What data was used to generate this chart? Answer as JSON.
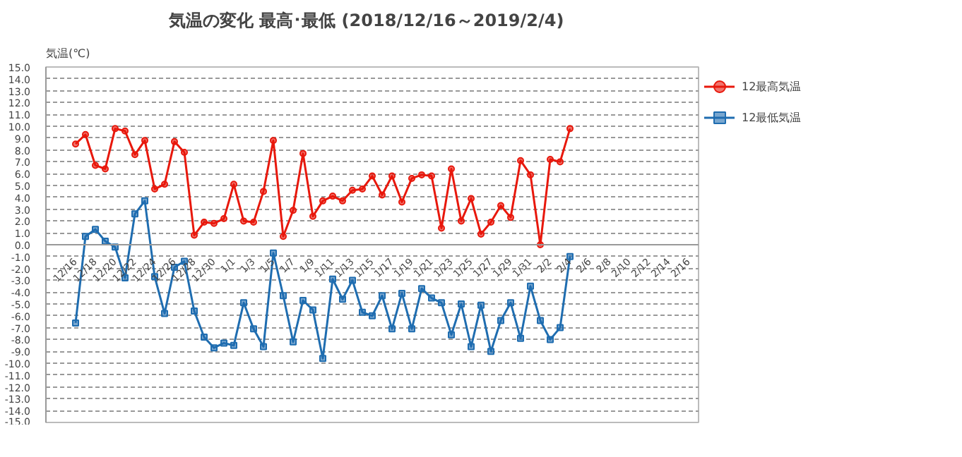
{
  "chart_data": {
    "type": "line",
    "title": "気温の変化  最高･最低  (2018/12/16～2019/2/4)",
    "ylabel": "気温(℃)",
    "x": [
      "2018-12-16",
      "2018-12-17",
      "2018-12-18",
      "2018-12-19",
      "2018-12-20",
      "2018-12-21",
      "2018-12-22",
      "2018-12-23",
      "2018-12-24",
      "2018-12-25",
      "2018-12-26",
      "2018-12-27",
      "2018-12-28",
      "2018-12-29",
      "2018-12-30",
      "2018-12-31",
      "2019-01-01",
      "2019-01-02",
      "2019-01-03",
      "2019-01-04",
      "2019-01-05",
      "2019-01-06",
      "2019-01-07",
      "2019-01-08",
      "2019-01-09",
      "2019-01-10",
      "2019-01-11",
      "2019-01-12",
      "2019-01-13",
      "2019-01-14",
      "2019-01-15",
      "2019-01-16",
      "2019-01-17",
      "2019-01-18",
      "2019-01-19",
      "2019-01-20",
      "2019-01-21",
      "2019-01-22",
      "2019-01-23",
      "2019-01-24",
      "2019-01-25",
      "2019-01-26",
      "2019-01-27",
      "2019-01-28",
      "2019-01-29",
      "2019-01-30",
      "2019-01-31",
      "2019-02-01",
      "2019-02-02",
      "2019-02-03",
      "2019-02-04"
    ],
    "series": [
      {
        "name": "12最高気温",
        "color": "#e8180c",
        "marker": "circle",
        "values": [
          8.5,
          9.3,
          6.7,
          6.4,
          9.8,
          9.6,
          7.6,
          8.8,
          4.7,
          5.1,
          8.7,
          7.8,
          0.8,
          1.9,
          1.8,
          2.2,
          5.1,
          2.0,
          1.9,
          4.5,
          8.8,
          0.7,
          2.9,
          7.7,
          2.4,
          3.7,
          4.1,
          3.7,
          4.6,
          4.7,
          5.8,
          4.2,
          5.8,
          3.6,
          5.6,
          5.9,
          5.8,
          1.4,
          6.4,
          2.0,
          3.9,
          0.9,
          1.9,
          3.3,
          2.3,
          7.1,
          5.9,
          0.0,
          7.2,
          7.0,
          9.8
        ]
      },
      {
        "name": "12最低気温",
        "color": "#1f6db0",
        "marker": "square",
        "values": [
          -6.6,
          0.7,
          1.3,
          0.3,
          -0.2,
          -2.8,
          2.6,
          3.7,
          -2.7,
          -5.8,
          -1.9,
          -1.4,
          -5.6,
          -7.8,
          -8.7,
          -8.3,
          -8.5,
          -4.9,
          -7.1,
          -8.6,
          -0.7,
          -4.3,
          -8.2,
          -4.7,
          -5.5,
          -9.6,
          -2.9,
          -4.6,
          -3.0,
          -5.7,
          -6.0,
          -4.3,
          -7.1,
          -4.1,
          -7.1,
          -3.7,
          -4.5,
          -4.9,
          -7.6,
          -5.0,
          -8.6,
          -5.1,
          -9.0,
          -6.4,
          -4.9,
          -7.9,
          -3.5,
          -6.4,
          -8.0,
          -7.0,
          -1.0
        ]
      }
    ],
    "xlim": [
      "2018-12-13",
      "2019-02-17"
    ],
    "xticks": [
      {
        "value": "2018-12-16",
        "label": "12/16"
      },
      {
        "value": "2018-12-18",
        "label": "12/18"
      },
      {
        "value": "2018-12-20",
        "label": "12/20"
      },
      {
        "value": "2018-12-22",
        "label": "12/22"
      },
      {
        "value": "2018-12-24",
        "label": "12/24"
      },
      {
        "value": "2018-12-26",
        "label": "12/26"
      },
      {
        "value": "2018-12-28",
        "label": "12/28"
      },
      {
        "value": "2018-12-30",
        "label": "12/30"
      },
      {
        "value": "2019-01-01",
        "label": "1/1"
      },
      {
        "value": "2019-01-03",
        "label": "1/3"
      },
      {
        "value": "2019-01-05",
        "label": "1/5"
      },
      {
        "value": "2019-01-07",
        "label": "1/7"
      },
      {
        "value": "2019-01-09",
        "label": "1/9"
      },
      {
        "value": "2019-01-11",
        "label": "1/11"
      },
      {
        "value": "2019-01-13",
        "label": "1/13"
      },
      {
        "value": "2019-01-15",
        "label": "1/15"
      },
      {
        "value": "2019-01-17",
        "label": "1/17"
      },
      {
        "value": "2019-01-19",
        "label": "1/19"
      },
      {
        "value": "2019-01-21",
        "label": "1/21"
      },
      {
        "value": "2019-01-23",
        "label": "1/23"
      },
      {
        "value": "2019-01-25",
        "label": "1/25"
      },
      {
        "value": "2019-01-27",
        "label": "1/27"
      },
      {
        "value": "2019-01-29",
        "label": "1/29"
      },
      {
        "value": "2019-01-31",
        "label": "1/31"
      },
      {
        "value": "2019-02-02",
        "label": "2/2"
      },
      {
        "value": "2019-02-04",
        "label": "2/4"
      },
      {
        "value": "2019-02-06",
        "label": "2/6"
      },
      {
        "value": "2019-02-08",
        "label": "2/8"
      },
      {
        "value": "2019-02-10",
        "label": "2/10"
      },
      {
        "value": "2019-02-12",
        "label": "2/12"
      },
      {
        "value": "2019-02-14",
        "label": "2/14"
      },
      {
        "value": "2019-02-16",
        "label": "2/16"
      }
    ],
    "ylim": [
      -15,
      15
    ],
    "yticks": [
      {
        "value": -15,
        "label": "-15.0"
      },
      {
        "value": -14,
        "label": "-14.0"
      },
      {
        "value": -13,
        "label": "-13.0"
      },
      {
        "value": -12,
        "label": "-12.0"
      },
      {
        "value": -11,
        "label": "-11.0"
      },
      {
        "value": -10,
        "label": "-10.0"
      },
      {
        "value": -9,
        "label": "-9.0"
      },
      {
        "value": -8,
        "label": "-8.0"
      },
      {
        "value": -7,
        "label": "-7.0"
      },
      {
        "value": -6,
        "label": "-6.0"
      },
      {
        "value": -5,
        "label": "-5.0"
      },
      {
        "value": -4,
        "label": "-4.0"
      },
      {
        "value": -3,
        "label": "-3.0"
      },
      {
        "value": -2,
        "label": "-2.0"
      },
      {
        "value": -1,
        "label": "-1.0"
      },
      {
        "value": 0,
        "label": "0.0"
      },
      {
        "value": 1,
        "label": "1.0"
      },
      {
        "value": 2,
        "label": "2.0"
      },
      {
        "value": 3,
        "label": "3.0"
      },
      {
        "value": 4,
        "label": "4.0"
      },
      {
        "value": 5,
        "label": "5.0"
      },
      {
        "value": 6,
        "label": "6.0"
      },
      {
        "value": 7,
        "label": "7.0"
      },
      {
        "value": 8,
        "label": "8.0"
      },
      {
        "value": 9,
        "label": "9.0"
      },
      {
        "value": 10,
        "label": "10.0"
      },
      {
        "value": 11,
        "label": "11.0"
      },
      {
        "value": 12,
        "label": "12.0"
      },
      {
        "value": 13,
        "label": "13.0"
      },
      {
        "value": 14,
        "label": "14.0"
      },
      {
        "value": 15,
        "label": "15.0"
      }
    ],
    "grid": "y",
    "legend": "right",
    "line_style": "solid"
  }
}
